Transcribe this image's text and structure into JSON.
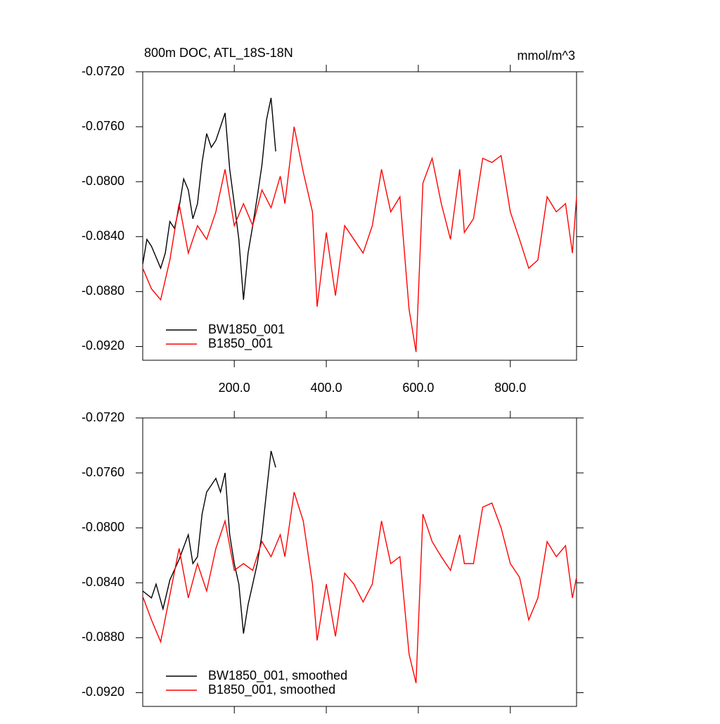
{
  "chart_data": [
    {
      "type": "line",
      "title": "800m DOC, ATL_18S-18N",
      "units": "mmol/m^3",
      "xlim": [
        1,
        944
      ],
      "ylim": [
        -0.093,
        -0.072
      ],
      "xticks": [
        {
          "value": 200,
          "label": "200.0"
        },
        {
          "value": 400,
          "label": "400.0"
        },
        {
          "value": 600,
          "label": "600.0"
        },
        {
          "value": 800,
          "label": "800.0"
        }
      ],
      "yticks": [
        {
          "value": -0.072,
          "label": "-0.0720"
        },
        {
          "value": -0.076,
          "label": "-0.0760"
        },
        {
          "value": -0.08,
          "label": "-0.0800"
        },
        {
          "value": -0.084,
          "label": "-0.0840"
        },
        {
          "value": -0.088,
          "label": "-0.0880"
        },
        {
          "value": -0.092,
          "label": "-0.0920"
        }
      ],
      "legend": "lower left",
      "series": [
        {
          "name": "BW1850_001",
          "color": "#000000",
          "x": [
            1,
            10,
            20,
            30,
            40,
            50,
            60,
            70,
            80,
            90,
            100,
            110,
            120,
            130,
            140,
            150,
            160,
            170,
            180,
            190,
            200,
            210,
            220,
            230,
            240,
            250,
            260,
            270,
            280,
            290
          ],
          "values": [
            -0.086,
            -0.0842,
            -0.0847,
            -0.0855,
            -0.0863,
            -0.0852,
            -0.0829,
            -0.0834,
            -0.0819,
            -0.0798,
            -0.0806,
            -0.0827,
            -0.0816,
            -0.0786,
            -0.0765,
            -0.0775,
            -0.077,
            -0.076,
            -0.075,
            -0.0791,
            -0.0816,
            -0.0842,
            -0.0886,
            -0.0852,
            -0.0832,
            -0.0811,
            -0.0788,
            -0.0755,
            -0.0739,
            -0.0778
          ]
        },
        {
          "name": "B1850_001",
          "color": "#ff0000",
          "x": [
            1,
            20,
            40,
            60,
            80,
            100,
            120,
            140,
            160,
            180,
            200,
            220,
            240,
            260,
            280,
            300,
            310,
            330,
            350,
            370,
            380,
            400,
            420,
            440,
            460,
            480,
            500,
            520,
            540,
            560,
            580,
            595,
            610,
            630,
            650,
            670,
            690,
            700,
            720,
            740,
            760,
            780,
            800,
            820,
            840,
            860,
            880,
            900,
            920,
            935,
            944
          ],
          "values": [
            -0.0863,
            -0.0878,
            -0.0886,
            -0.0857,
            -0.0816,
            -0.0852,
            -0.0832,
            -0.0842,
            -0.0822,
            -0.0791,
            -0.0832,
            -0.0816,
            -0.0832,
            -0.0806,
            -0.0819,
            -0.0796,
            -0.0816,
            -0.076,
            -0.0793,
            -0.0822,
            -0.0891,
            -0.0837,
            -0.0883,
            -0.0832,
            -0.0842,
            -0.0852,
            -0.0832,
            -0.0791,
            -0.0822,
            -0.0811,
            -0.0893,
            -0.0924,
            -0.0801,
            -0.0783,
            -0.0816,
            -0.0842,
            -0.0791,
            -0.0837,
            -0.0827,
            -0.0783,
            -0.0786,
            -0.0781,
            -0.0822,
            -0.0842,
            -0.0863,
            -0.0857,
            -0.0811,
            -0.0822,
            -0.0816,
            -0.0852,
            -0.0811
          ]
        }
      ]
    },
    {
      "type": "line",
      "xlim": [
        1,
        944
      ],
      "ylim": [
        -0.093,
        -0.072
      ],
      "yticks": [
        {
          "value": -0.072,
          "label": "-0.0720"
        },
        {
          "value": -0.076,
          "label": "-0.0760"
        },
        {
          "value": -0.08,
          "label": "-0.0800"
        },
        {
          "value": -0.084,
          "label": "-0.0840"
        },
        {
          "value": -0.088,
          "label": "-0.0880"
        },
        {
          "value": -0.092,
          "label": "-0.0920"
        }
      ],
      "legend": "lower left",
      "series": [
        {
          "name": "BW1850_001, smoothed",
          "color": "#000000",
          "x": [
            1,
            20,
            30,
            45,
            60,
            80,
            100,
            110,
            120,
            130,
            140,
            160,
            170,
            180,
            190,
            200,
            210,
            220,
            230,
            240,
            250,
            260,
            270,
            280,
            290
          ],
          "values": [
            -0.0846,
            -0.0851,
            -0.0841,
            -0.0859,
            -0.0838,
            -0.0823,
            -0.0805,
            -0.0826,
            -0.0821,
            -0.079,
            -0.0774,
            -0.0764,
            -0.0774,
            -0.076,
            -0.0805,
            -0.0826,
            -0.0841,
            -0.0877,
            -0.0856,
            -0.0841,
            -0.0826,
            -0.0805,
            -0.0774,
            -0.0744,
            -0.0756
          ]
        },
        {
          "name": "B1850_001, smoothed",
          "color": "#ff0000",
          "x": [
            1,
            20,
            40,
            60,
            80,
            100,
            120,
            140,
            160,
            180,
            200,
            220,
            240,
            260,
            280,
            300,
            310,
            330,
            350,
            370,
            380,
            400,
            420,
            440,
            460,
            480,
            500,
            520,
            540,
            560,
            580,
            595,
            610,
            630,
            650,
            670,
            690,
            700,
            720,
            740,
            760,
            780,
            800,
            820,
            840,
            860,
            880,
            900,
            920,
            935,
            944
          ],
          "values": [
            -0.085,
            -0.0867,
            -0.0883,
            -0.0849,
            -0.0815,
            -0.0851,
            -0.0826,
            -0.0846,
            -0.0815,
            -0.0795,
            -0.0831,
            -0.0826,
            -0.0831,
            -0.081,
            -0.0821,
            -0.0805,
            -0.0821,
            -0.0774,
            -0.0795,
            -0.0841,
            -0.0882,
            -0.0841,
            -0.0879,
            -0.0833,
            -0.0841,
            -0.0854,
            -0.0841,
            -0.0795,
            -0.0826,
            -0.0821,
            -0.0892,
            -0.0913,
            -0.079,
            -0.081,
            -0.0821,
            -0.0831,
            -0.0805,
            -0.0826,
            -0.0826,
            -0.0785,
            -0.0782,
            -0.08,
            -0.0826,
            -0.0836,
            -0.0867,
            -0.0851,
            -0.081,
            -0.0821,
            -0.0813,
            -0.0851,
            -0.0836
          ]
        }
      ]
    }
  ]
}
